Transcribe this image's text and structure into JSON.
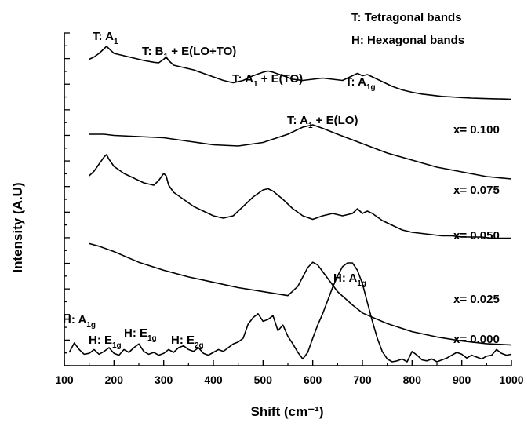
{
  "chart_data": {
    "type": "line",
    "xlabel": "Shift (cm⁻¹)",
    "ylabel": "Intensity (A.U)",
    "xlim": [
      100,
      1000
    ],
    "x_ticks": [
      "100",
      "200",
      "300",
      "400",
      "500",
      "600",
      "700",
      "800",
      "900",
      "1000"
    ],
    "y_ticks_shown": false,
    "legend": {
      "position": "top-right",
      "entries": [
        "T: Tetragonal bands",
        "H: Hexagonal bands"
      ]
    },
    "series": [
      {
        "name": "x= 0.100",
        "label": "x= 0.100",
        "x": [
          150,
          160,
          170,
          180,
          185,
          190,
          200,
          210,
          220,
          240,
          260,
          280,
          290,
          300,
          305,
          310,
          320,
          340,
          360,
          380,
          400,
          420,
          440,
          460,
          480,
          500,
          510,
          520,
          540,
          560,
          580,
          600,
          620,
          640,
          660,
          680,
          690,
          700,
          710,
          720,
          740,
          760,
          780,
          800,
          820,
          840,
          860,
          880,
          900,
          920,
          940,
          960,
          980,
          1000
        ],
        "y": [
          0.7,
          0.74,
          0.8,
          0.88,
          0.92,
          0.88,
          0.8,
          0.78,
          0.76,
          0.72,
          0.68,
          0.65,
          0.64,
          0.7,
          0.74,
          0.68,
          0.6,
          0.56,
          0.52,
          0.46,
          0.4,
          0.34,
          0.3,
          0.34,
          0.42,
          0.48,
          0.5,
          0.48,
          0.42,
          0.36,
          0.34,
          0.36,
          0.38,
          0.36,
          0.34,
          0.42,
          0.46,
          0.42,
          0.44,
          0.4,
          0.32,
          0.24,
          0.18,
          0.14,
          0.11,
          0.09,
          0.07,
          0.06,
          0.05,
          0.04,
          0.035,
          0.03,
          0.025,
          0.02
        ]
      },
      {
        "name": "x= 0.075",
        "label": "x= 0.075",
        "x": [
          150,
          180,
          200,
          250,
          300,
          350,
          400,
          450,
          500,
          550,
          580,
          600,
          620,
          650,
          700,
          750,
          800,
          850,
          900,
          950,
          1000
        ],
        "y": [
          0.5,
          0.5,
          0.49,
          0.48,
          0.47,
          0.44,
          0.41,
          0.4,
          0.43,
          0.5,
          0.56,
          0.58,
          0.55,
          0.5,
          0.42,
          0.34,
          0.28,
          0.22,
          0.18,
          0.14,
          0.12
        ]
      },
      {
        "name": "x= 0.050",
        "label": "x= 0.050",
        "x": [
          150,
          160,
          170,
          180,
          185,
          190,
          200,
          220,
          240,
          260,
          280,
          290,
          300,
          305,
          310,
          320,
          340,
          360,
          380,
          400,
          420,
          440,
          460,
          480,
          500,
          510,
          520,
          540,
          560,
          580,
          600,
          620,
          640,
          660,
          680,
          690,
          700,
          710,
          720,
          740,
          760,
          780,
          800,
          820,
          840,
          860,
          880,
          900,
          920,
          940,
          960,
          980,
          1000
        ],
        "y": [
          0.44,
          0.48,
          0.54,
          0.6,
          0.62,
          0.58,
          0.52,
          0.46,
          0.42,
          0.38,
          0.36,
          0.4,
          0.46,
          0.44,
          0.36,
          0.3,
          0.24,
          0.18,
          0.14,
          0.1,
          0.08,
          0.1,
          0.18,
          0.26,
          0.32,
          0.33,
          0.31,
          0.24,
          0.16,
          0.1,
          0.07,
          0.1,
          0.12,
          0.1,
          0.12,
          0.16,
          0.12,
          0.14,
          0.12,
          0.06,
          0.02,
          -0.02,
          -0.04,
          -0.05,
          -0.06,
          -0.07,
          -0.07,
          -0.08,
          -0.08,
          -0.08,
          -0.09,
          -0.09,
          -0.09
        ]
      },
      {
        "name": "x= 0.025",
        "label": "x= 0.025",
        "x": [
          150,
          170,
          200,
          250,
          300,
          350,
          400,
          450,
          500,
          550,
          570,
          590,
          600,
          610,
          630,
          650,
          680,
          700,
          750,
          800,
          850,
          900,
          950,
          1000
        ],
        "y": [
          0.38,
          0.36,
          0.32,
          0.24,
          0.18,
          0.13,
          0.09,
          0.05,
          0.02,
          -0.01,
          0.06,
          0.2,
          0.24,
          0.22,
          0.12,
          0.02,
          -0.08,
          -0.14,
          -0.22,
          -0.28,
          -0.32,
          -0.35,
          -0.37,
          -0.38
        ]
      },
      {
        "name": "x= 0.000",
        "label": "x= 0.000",
        "x": [
          110,
          120,
          130,
          140,
          150,
          160,
          170,
          180,
          190,
          200,
          210,
          220,
          230,
          240,
          250,
          260,
          270,
          280,
          290,
          300,
          310,
          320,
          330,
          340,
          350,
          360,
          370,
          380,
          390,
          400,
          410,
          420,
          430,
          440,
          450,
          460,
          470,
          480,
          490,
          500,
          510,
          520,
          530,
          540,
          550,
          560,
          570,
          580,
          590,
          600,
          610,
          620,
          630,
          640,
          650,
          660,
          670,
          680,
          690,
          700,
          710,
          720,
          730,
          740,
          750,
          760,
          770,
          780,
          790,
          800,
          810,
          820,
          830,
          840,
          850,
          860,
          870,
          880,
          890,
          900,
          910,
          920,
          930,
          940,
          950,
          960,
          970,
          980,
          990,
          1000
        ],
        "y": [
          0.05,
          0.15,
          0.08,
          0.03,
          0.04,
          0.08,
          0.03,
          0.06,
          0.1,
          0.04,
          0.02,
          0.08,
          0.05,
          0.1,
          0.14,
          0.06,
          0.03,
          0.05,
          0.02,
          0.04,
          0.08,
          0.05,
          0.1,
          0.12,
          0.08,
          0.06,
          0.1,
          0.04,
          0.02,
          0.05,
          0.08,
          0.06,
          0.1,
          0.14,
          0.16,
          0.2,
          0.35,
          0.42,
          0.46,
          0.38,
          0.4,
          0.44,
          0.28,
          0.34,
          0.22,
          0.14,
          0.05,
          -0.02,
          0.05,
          0.2,
          0.34,
          0.46,
          0.6,
          0.74,
          0.86,
          0.96,
          1.0,
          1.0,
          0.92,
          0.78,
          0.58,
          0.38,
          0.2,
          0.06,
          -0.02,
          -0.05,
          -0.04,
          -0.02,
          -0.05,
          0.06,
          0.02,
          -0.03,
          -0.04,
          -0.02,
          -0.05,
          -0.03,
          -0.01,
          0.02,
          0.05,
          0.03,
          -0.01,
          0.02,
          0.0,
          -0.02,
          0.01,
          0.02,
          0.08,
          0.04,
          0.02,
          0.03
        ]
      }
    ],
    "annotations": [
      {
        "text": "T: A",
        "sub": "1",
        "after": ""
      },
      {
        "text": "T: B",
        "sub": "1",
        "after": " + E(LO+TO)"
      },
      {
        "text": "T: A",
        "sub": "1",
        "after": " + E(TO)"
      },
      {
        "text": "T: A",
        "sub": "1g",
        "after": ""
      },
      {
        "text": "T: A",
        "sub": "1",
        "after": " + E(LO)"
      },
      {
        "text": "H: A",
        "sub": "1g",
        "after": ""
      },
      {
        "text": "H: A",
        "sub": "1g",
        "after": ""
      },
      {
        "text": "H: E",
        "sub": "1g",
        "after": ""
      },
      {
        "text": "H: E",
        "sub": "1g",
        "after": ""
      },
      {
        "text": "H: E",
        "sub": "2g",
        "after": ""
      }
    ]
  }
}
